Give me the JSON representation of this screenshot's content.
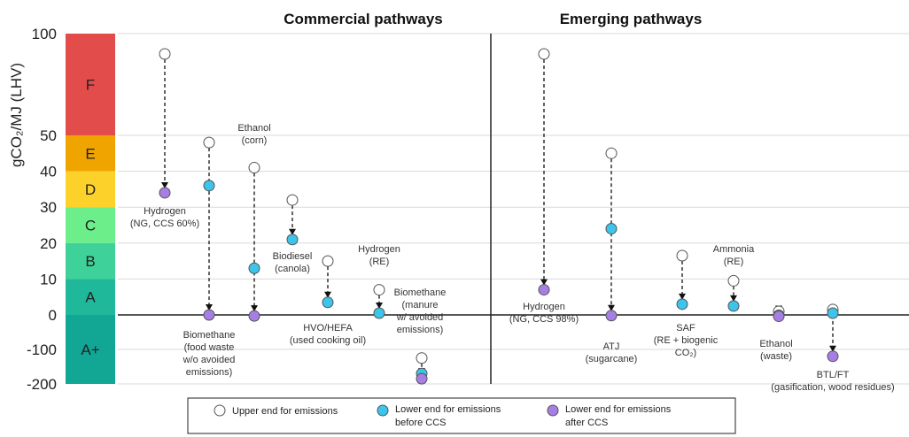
{
  "chart_data": {
    "type": "scatter",
    "ylabel": "gCO₂/MJ (LHV)",
    "panels": [
      "Commercial pathways",
      "Emerging pathways"
    ],
    "y_ticks": [
      "100",
      "50",
      "40",
      "30",
      "20",
      "10",
      "0",
      "-100",
      "-200"
    ],
    "grades": [
      {
        "letter": "F",
        "from": "50",
        "to": "100",
        "color": "#e24c4b"
      },
      {
        "letter": "E",
        "from": "40",
        "to": "50",
        "color": "#f0a400"
      },
      {
        "letter": "D",
        "from": "30",
        "to": "40",
        "color": "#fcd12a"
      },
      {
        "letter": "C",
        "from": "20",
        "to": "30",
        "color": "#6cef8a"
      },
      {
        "letter": "B",
        "from": "10",
        "to": "20",
        "color": "#3ed199"
      },
      {
        "letter": "A",
        "from": "0",
        "to": "10",
        "color": "#1fb89a"
      },
      {
        "letter": "A+",
        "from": "-200",
        "to": "0",
        "color": "#12a694"
      }
    ],
    "colors": {
      "upper": "#ffffff",
      "before_ccs": "#3cc4ea",
      "after_ccs": "#a77ee3"
    },
    "legend": {
      "upper": "Upper end for emissions",
      "before": [
        "Lower end for emissions",
        "before CCS"
      ],
      "after": [
        "Lower end for emissions",
        "after CCS"
      ]
    },
    "pathways": [
      {
        "panel": 0,
        "label": [
          "Hydrogen",
          "(NG, CCS 60%)"
        ],
        "upper": 90,
        "lower": 34,
        "lower_kind": "after_ccs"
      },
      {
        "panel": 0,
        "label": [
          "Biomethane",
          "(food waste",
          "w/o avoided",
          "emissions)"
        ],
        "upper": 48,
        "lower": 36,
        "lower2": 0,
        "lower_kind": "before_ccs"
      },
      {
        "panel": 0,
        "label": [
          "Ethanol",
          "(corn)"
        ],
        "upper": 41,
        "lower": 13,
        "lower2": -3,
        "lower_kind": "before_ccs"
      },
      {
        "panel": 0,
        "label": [
          "Biodiesel",
          "(canola)"
        ],
        "upper": 32,
        "lower": 21,
        "lower_kind": "before_ccs"
      },
      {
        "panel": 0,
        "label": [
          "HVO/HEFA",
          "(used cooking oil)"
        ],
        "upper": 15,
        "lower": 3.5,
        "lower_kind": "before_ccs"
      },
      {
        "panel": 0,
        "label": [
          "Hydrogen",
          "(RE)"
        ],
        "upper": 7,
        "lower": 0.5,
        "lower_kind": "before_ccs"
      },
      {
        "panel": 0,
        "label": [
          "Biomethane",
          "(manure",
          "w/ avoided",
          "emissions)"
        ],
        "upper": -125,
        "lower": -170,
        "lower2": -185,
        "lower_kind": "before_ccs"
      },
      {
        "panel": 1,
        "label": [
          "Hydrogen",
          "(NG, CCS 98%)"
        ],
        "upper": 90,
        "lower": 7,
        "lower_kind": "after_ccs"
      },
      {
        "panel": 1,
        "label": [
          "ATJ",
          "(sugarcane)"
        ],
        "upper": 45,
        "lower": 24,
        "lower2": -2,
        "lower_kind": "before_ccs"
      },
      {
        "panel": 1,
        "label": [
          "SAF",
          "(RE + biogenic",
          "CO₂)"
        ],
        "upper": 16.5,
        "lower": 3,
        "lower_kind": "before_ccs"
      },
      {
        "panel": 1,
        "label": [
          "Ammonia",
          "(RE)"
        ],
        "upper": 9.5,
        "lower": 2.5,
        "lower_kind": "before_ccs"
      },
      {
        "panel": 1,
        "label": [
          "Ethanol",
          "(waste)"
        ],
        "upper": 1,
        "lower": -1,
        "lower2": -4,
        "lower_kind": "before_ccs"
      },
      {
        "panel": 1,
        "label": [
          "BTL/FT",
          "(gasification, wood residues)"
        ],
        "upper": 1.5,
        "lower": 0.5,
        "lower2": -120,
        "lower_kind": "before_ccs"
      }
    ]
  }
}
